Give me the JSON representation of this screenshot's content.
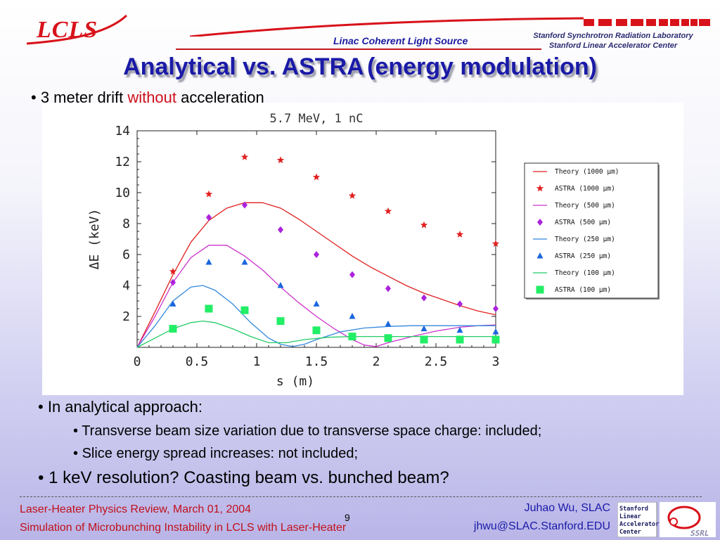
{
  "header": {
    "logo": "LCLS",
    "center": "Linac Coherent Light Source",
    "right_line1": "Stanford Synchrotron Radiation Laboratory",
    "right_line2": "Stanford Linear Accelerator Center"
  },
  "title": {
    "main": "Analytical vs. ASTRA",
    "paren": "(energy modulation)"
  },
  "bullets": {
    "b1_pre": "3 meter drift ",
    "b1_red": "without",
    "b1_post": " acceleration",
    "b2": "In analytical approach:",
    "b3": "Transverse beam size variation due to transverse space charge: included;",
    "b4": "Slice energy spread increases: not included;",
    "b5": "1 keV resolution? Coasting beam vs. bunched beam?"
  },
  "footer": {
    "left1": "Laser-Heater Physics Review, March 01, 2004",
    "left2": "Simulation of Microbunching Instability in LCLS with Laser-Heater",
    "page": "9",
    "right1": "Juhao Wu, SLAC",
    "right2": "jhwu@SLAC.Stanford.EDU",
    "ssrl_lines": [
      "Stanford",
      "Linear",
      "Accelerator",
      "Center"
    ],
    "ssrl_mark": "SSRL"
  },
  "chart_data": {
    "type": "line",
    "title": "5.7 MeV, 1 nC",
    "xlabel": "s (m)",
    "ylabel": "ΔE (keV)",
    "xlim": [
      0,
      3
    ],
    "ylim": [
      0,
      14
    ],
    "xticks": [
      "0",
      "0.5",
      "1",
      "1.5",
      "2",
      "2.5",
      "3"
    ],
    "xtick_values": [
      0,
      0.5,
      1,
      1.5,
      2,
      2.5,
      3
    ],
    "yticks": [
      "2",
      "4",
      "6",
      "8",
      "10",
      "12",
      "14"
    ],
    "ytick_values": [
      2,
      4,
      6,
      8,
      10,
      12,
      14
    ],
    "legend_position": "right",
    "series": [
      {
        "name": "Theory (1000 μm)",
        "kind": "line",
        "color": "#e02020",
        "x": [
          0,
          0.15,
          0.3,
          0.45,
          0.6,
          0.75,
          0.9,
          1.05,
          1.2,
          1.35,
          1.5,
          1.65,
          1.8,
          1.95,
          2.1,
          2.25,
          2.4,
          2.55,
          2.7,
          2.85,
          3.0
        ],
        "y": [
          0,
          2.3,
          4.7,
          6.8,
          8.2,
          9.0,
          9.35,
          9.35,
          9.0,
          8.3,
          7.5,
          6.7,
          5.9,
          5.2,
          4.6,
          4.0,
          3.5,
          3.1,
          2.7,
          2.35,
          2.1
        ]
      },
      {
        "name": "ASTRA (1000 μm)",
        "kind": "marker",
        "marker": "star",
        "color": "#e02020",
        "x": [
          0.3,
          0.6,
          0.9,
          1.2,
          1.5,
          1.8,
          2.1,
          2.4,
          2.7,
          3.0
        ],
        "y": [
          4.9,
          9.9,
          12.3,
          12.1,
          11.0,
          9.8,
          8.8,
          7.9,
          7.3,
          6.7
        ]
      },
      {
        "name": "Theory (500 μm)",
        "kind": "line",
        "color": "#cc33cc",
        "x": [
          0,
          0.15,
          0.3,
          0.45,
          0.6,
          0.75,
          0.9,
          1.05,
          1.2,
          1.35,
          1.5,
          1.65,
          1.8,
          1.9,
          2.0,
          2.1,
          2.3,
          2.5,
          2.7,
          2.85,
          3.0
        ],
        "y": [
          0,
          2.0,
          4.2,
          5.8,
          6.6,
          6.6,
          5.9,
          5.0,
          3.9,
          2.9,
          2.0,
          1.2,
          0.5,
          0.15,
          0.05,
          0.3,
          0.7,
          1.05,
          1.3,
          1.4,
          1.45
        ]
      },
      {
        "name": "ASTRA (500 μm)",
        "kind": "marker",
        "marker": "diamond",
        "color": "#aa22dd",
        "x": [
          0.3,
          0.6,
          0.9,
          1.2,
          1.5,
          1.8,
          2.1,
          2.4,
          2.7,
          3.0
        ],
        "y": [
          4.2,
          8.4,
          9.2,
          7.6,
          6.0,
          4.7,
          3.8,
          3.2,
          2.8,
          2.5
        ]
      },
      {
        "name": "Theory (250 μm)",
        "kind": "line",
        "color": "#3388dd",
        "x": [
          0,
          0.15,
          0.3,
          0.45,
          0.55,
          0.65,
          0.8,
          0.95,
          1.1,
          1.2,
          1.3,
          1.4,
          1.5,
          1.7,
          1.9,
          2.1,
          2.3,
          2.5,
          2.7,
          3.0
        ],
        "y": [
          0,
          1.4,
          3.0,
          3.9,
          4.0,
          3.7,
          2.8,
          1.6,
          0.6,
          0.2,
          0.05,
          0.2,
          0.5,
          1.0,
          1.25,
          1.35,
          1.4,
          1.4,
          1.4,
          1.4
        ]
      },
      {
        "name": "ASTRA (250 μm)",
        "kind": "marker",
        "marker": "triangle",
        "color": "#1a66dd",
        "x": [
          0.3,
          0.6,
          0.9,
          1.2,
          1.5,
          1.8,
          2.1,
          2.4,
          2.7,
          3.0
        ],
        "y": [
          2.8,
          5.5,
          5.5,
          4.0,
          2.8,
          2.0,
          1.5,
          1.2,
          1.1,
          1.0
        ]
      },
      {
        "name": "Theory (100 μm)",
        "kind": "line",
        "color": "#22cc66",
        "x": [
          0,
          0.15,
          0.3,
          0.45,
          0.55,
          0.65,
          0.8,
          0.95,
          1.1,
          1.25,
          1.4,
          1.6,
          1.8,
          2.0,
          2.2,
          2.5,
          2.8,
          3.0
        ],
        "y": [
          0,
          0.6,
          1.2,
          1.6,
          1.7,
          1.6,
          1.2,
          0.7,
          0.3,
          0.3,
          0.5,
          0.65,
          0.7,
          0.7,
          0.7,
          0.7,
          0.7,
          0.7
        ]
      },
      {
        "name": "ASTRA (100 μm)",
        "kind": "marker",
        "marker": "square",
        "color": "#22ee66",
        "x": [
          0.3,
          0.6,
          0.9,
          1.2,
          1.5,
          1.8,
          2.1,
          2.4,
          2.7,
          3.0
        ],
        "y": [
          1.2,
          2.5,
          2.4,
          1.7,
          1.1,
          0.7,
          0.6,
          0.5,
          0.5,
          0.5
        ]
      }
    ]
  }
}
